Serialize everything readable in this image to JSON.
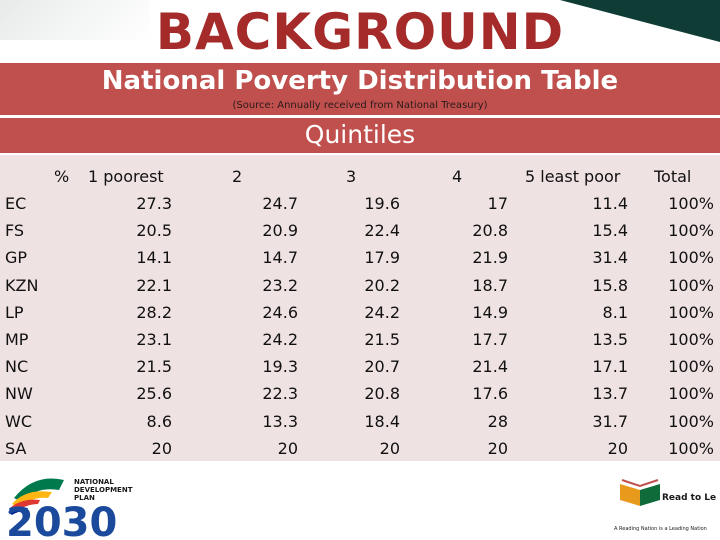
{
  "title": "BACKGROUND",
  "header": {
    "main": "National Poverty Distribution Table",
    "source": "(Source: Annually received from National Treasury)"
  },
  "quintiles_label": "Quintiles",
  "table": {
    "corner": "%",
    "columns": [
      "1 poorest",
      "2",
      "3",
      "4",
      "5 least poor",
      "Total"
    ],
    "rows": [
      {
        "label": "EC",
        "values": [
          "27.3",
          "24.7",
          "19.6",
          "17",
          "11.4",
          "100%"
        ]
      },
      {
        "label": "FS",
        "values": [
          "20.5",
          "20.9",
          "22.4",
          "20.8",
          "15.4",
          "100%"
        ]
      },
      {
        "label": "GP",
        "values": [
          "14.1",
          "14.7",
          "17.9",
          "21.9",
          "31.4",
          "100%"
        ]
      },
      {
        "label": "KZN",
        "values": [
          "22.1",
          "23.2",
          "20.2",
          "18.7",
          "15.8",
          "100%"
        ]
      },
      {
        "label": "LP",
        "values": [
          "28.2",
          "24.6",
          "24.2",
          "14.9",
          "8.1",
          "100%"
        ]
      },
      {
        "label": "MP",
        "values": [
          "23.1",
          "24.2",
          "21.5",
          "17.7",
          "13.5",
          "100%"
        ]
      },
      {
        "label": "NC",
        "values": [
          "21.5",
          "19.3",
          "20.7",
          "21.4",
          "17.1",
          "100%"
        ]
      },
      {
        "label": "NW",
        "values": [
          "25.6",
          "22.3",
          "20.8",
          "17.6",
          "13.7",
          "100%"
        ]
      },
      {
        "label": "WC",
        "values": [
          "8.6",
          "13.3",
          "18.4",
          "28",
          "31.7",
          "100%"
        ]
      },
      {
        "label": "SA",
        "values": [
          "20",
          "20",
          "20",
          "20",
          "20",
          "100%"
        ]
      }
    ]
  },
  "footer": {
    "left_logo_text": [
      "NATIONAL",
      "DEVELOPMENT",
      "PLAN",
      "2030"
    ],
    "right_logo_text": [
      "Read to Lead",
      "A Reading Nation is a Leading Nation"
    ]
  },
  "colors": {
    "title": "#a52a2a",
    "header_bg": "#c0504d",
    "table_bg": "#efe2e2",
    "dark_green": "#0f3d35"
  }
}
